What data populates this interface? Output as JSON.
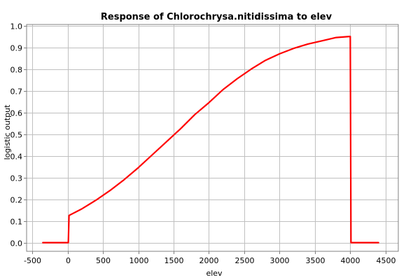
{
  "chart_data": {
    "type": "line",
    "title": "Response of Chlorochrysa.nitidissima to elev",
    "xlabel": "elev",
    "ylabel": "logistic output",
    "xlim": [
      -580,
      4680
    ],
    "ylim": [
      -0.04,
      1.005
    ],
    "grid": true,
    "x_ticks": [
      -500,
      0,
      500,
      1000,
      1500,
      2000,
      2500,
      3000,
      3500,
      4000,
      4500
    ],
    "x_tick_labels": [
      "-500",
      "0",
      "500",
      "1000",
      "1500",
      "2000",
      "2500",
      "3000",
      "3500",
      "4000",
      "4500"
    ],
    "y_ticks": [
      0.0,
      0.1,
      0.2,
      0.3,
      0.4,
      0.5,
      0.6,
      0.7,
      0.8,
      0.9,
      1.0
    ],
    "y_tick_labels": [
      "0.0",
      "0.1",
      "0.2",
      "0.3",
      "0.4",
      "0.5",
      "0.6",
      "0.7",
      "0.8",
      "0.9",
      "1.0"
    ],
    "series": [
      {
        "color": "#ff0000",
        "x": [
          -350,
          10,
          20,
          200,
          400,
          600,
          800,
          1000,
          1200,
          1400,
          1600,
          1800,
          2000,
          2200,
          2400,
          2600,
          2800,
          3000,
          3200,
          3400,
          3600,
          3800,
          3990,
          4000,
          4010,
          4400
        ],
        "y": [
          0.0,
          0.0,
          0.125,
          0.155,
          0.195,
          0.24,
          0.29,
          0.345,
          0.405,
          0.465,
          0.525,
          0.59,
          0.645,
          0.705,
          0.755,
          0.8,
          0.84,
          0.87,
          0.895,
          0.915,
          0.93,
          0.945,
          0.95,
          0.95,
          0.0,
          0.0
        ]
      }
    ]
  }
}
